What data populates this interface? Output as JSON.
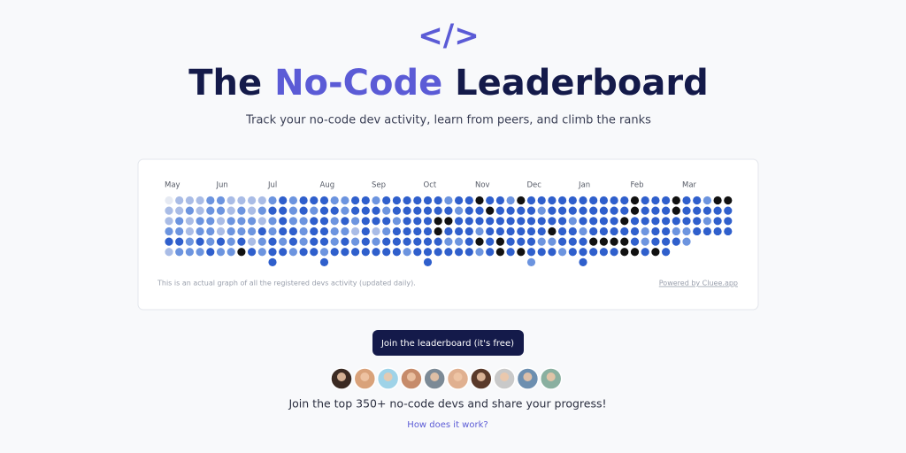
{
  "header": {
    "logo": "</>",
    "title_prefix": "The",
    "title_highlight": "No-Code",
    "title_suffix": "Leaderboard",
    "subtitle": "Track your no-code dev activity, learn from peers, and climb the ranks"
  },
  "activity_graph": {
    "months": [
      "May",
      "Jun",
      "Jul",
      "Aug",
      "Sep",
      "Oct",
      "Nov",
      "Dec",
      "Jan",
      "Feb",
      "Mar"
    ],
    "level_colors": [
      "#e6eaf3",
      "#a9bce6",
      "#6c94df",
      "#2f5fcc",
      "#111111"
    ],
    "rows": [
      [
        0,
        1,
        1,
        1,
        2,
        2,
        1,
        1,
        1,
        1,
        2,
        3,
        2,
        3,
        3,
        3,
        2,
        2,
        3,
        3,
        2,
        3,
        3,
        3,
        3,
        3,
        3,
        2,
        3,
        3,
        4,
        3,
        3,
        2,
        4,
        3,
        3,
        3,
        3,
        3,
        3,
        3,
        3,
        3,
        3,
        4,
        3,
        3,
        3,
        4,
        3,
        3,
        2,
        4,
        4
      ],
      [
        1,
        1,
        2,
        1,
        2,
        2,
        1,
        2,
        1,
        2,
        3,
        3,
        2,
        3,
        2,
        3,
        3,
        2,
        3,
        3,
        3,
        2,
        3,
        3,
        3,
        3,
        3,
        3,
        2,
        3,
        3,
        4,
        3,
        3,
        3,
        3,
        2,
        3,
        3,
        3,
        3,
        3,
        3,
        3,
        3,
        4,
        3,
        3,
        3,
        4,
        3,
        3,
        3,
        3,
        3
      ],
      [
        1,
        2,
        1,
        2,
        2,
        1,
        2,
        2,
        2,
        1,
        2,
        3,
        2,
        2,
        3,
        3,
        2,
        3,
        2,
        3,
        3,
        3,
        2,
        3,
        3,
        3,
        4,
        4,
        3,
        3,
        3,
        3,
        3,
        3,
        3,
        3,
        3,
        3,
        3,
        2,
        3,
        3,
        3,
        3,
        4,
        3,
        3,
        3,
        3,
        3,
        3,
        3,
        2,
        3,
        3
      ],
      [
        2,
        2,
        1,
        2,
        2,
        1,
        2,
        2,
        2,
        3,
        2,
        3,
        3,
        2,
        3,
        3,
        2,
        2,
        1,
        3,
        1,
        2,
        3,
        3,
        3,
        3,
        4,
        3,
        3,
        3,
        2,
        3,
        3,
        3,
        3,
        3,
        3,
        4,
        3,
        3,
        2,
        3,
        3,
        3,
        3,
        3,
        2,
        3,
        3,
        2,
        2,
        3,
        3,
        3,
        3
      ],
      [
        3,
        3,
        2,
        3,
        2,
        3,
        2,
        3,
        1,
        2,
        3,
        2,
        3,
        2,
        3,
        3,
        2,
        3,
        2,
        3,
        2,
        3,
        3,
        3,
        3,
        3,
        3,
        2,
        2,
        3,
        4,
        3,
        4,
        3,
        3,
        3,
        2,
        2,
        3,
        3,
        3,
        4,
        4,
        4,
        4,
        3,
        2,
        3,
        3,
        3,
        2,
        null,
        null,
        null,
        null
      ],
      [
        1,
        2,
        2,
        2,
        3,
        2,
        2,
        4,
        3,
        2,
        3,
        3,
        2,
        3,
        3,
        2,
        3,
        3,
        3,
        3,
        3,
        3,
        3,
        2,
        3,
        3,
        3,
        3,
        3,
        3,
        2,
        3,
        4,
        3,
        4,
        3,
        3,
        3,
        2,
        3,
        3,
        3,
        3,
        3,
        4,
        4,
        3,
        4,
        3,
        null,
        null,
        null,
        null,
        null,
        null
      ],
      [
        null,
        null,
        null,
        null,
        null,
        null,
        null,
        null,
        null,
        null,
        3,
        null,
        null,
        null,
        null,
        3,
        null,
        null,
        null,
        null,
        null,
        null,
        null,
        null,
        null,
        3,
        null,
        null,
        null,
        null,
        null,
        null,
        null,
        null,
        null,
        2,
        null,
        null,
        null,
        null,
        3,
        null,
        null,
        null,
        null,
        null,
        null,
        null,
        null,
        null,
        null,
        null,
        null,
        null,
        null
      ]
    ],
    "footnote": "This is an actual graph of all the registered devs activity (updated daily).",
    "powered_by": "Powered by Cluee.app"
  },
  "cta": {
    "button": "Join the leaderboard (it's free)",
    "join_text": "Join the top 350+ no-code devs and share your progress!",
    "how_link": "How does it work?"
  }
}
